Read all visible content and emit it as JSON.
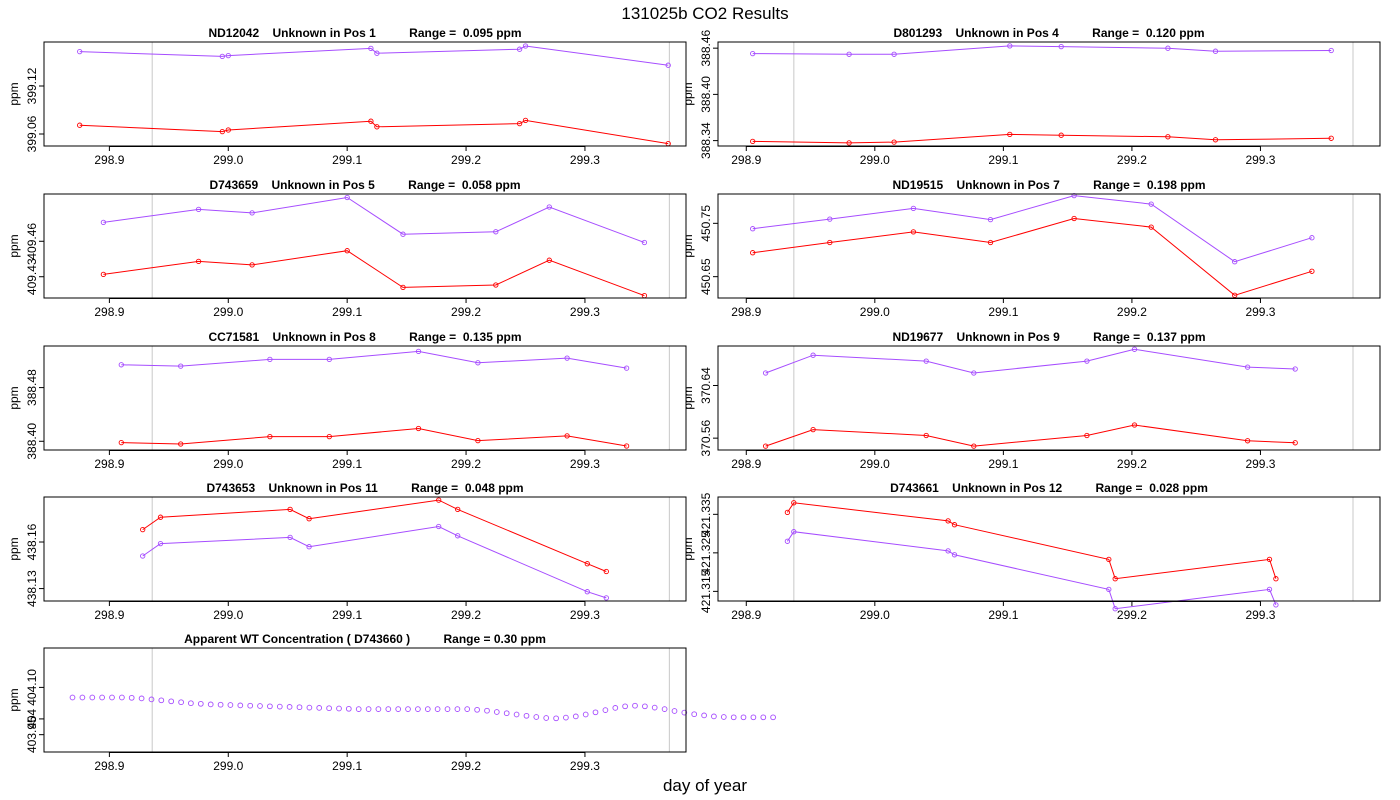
{
  "title": "131025b  CO2 Results",
  "xlabel": "day of year",
  "colors": {
    "upper": "#a64dff",
    "lower": "#ff0000",
    "wt": "#ff0000",
    "vline": "#c8c8c8",
    "axis": "#000000"
  },
  "chart_data": [
    {
      "type": "line",
      "id": "p1",
      "title": "ND12042    Unknown in Pos 1          Range =  0.095 ppm",
      "ylabel": "ppm",
      "xlim": [
        298.845,
        299.385
      ],
      "ylim": [
        399.045,
        399.175
      ],
      "yticks": [
        399.06,
        399.12
      ],
      "ytick_labels": [
        "399.06",
        "399.12"
      ],
      "xticks": [
        298.9,
        299.0,
        299.1,
        299.2,
        299.3
      ],
      "xtick_labels": [
        "298.9",
        "299.0",
        "299.1",
        "299.2",
        "299.3"
      ],
      "vlines": [
        298.936,
        299.371
      ],
      "series": [
        {
          "name": "upper",
          "x": [
            298.875,
            298.995,
            299.0,
            299.12,
            299.125,
            299.245,
            299.25,
            299.37
          ],
          "y": [
            399.163,
            399.157,
            399.158,
            399.167,
            399.161,
            399.166,
            399.17,
            399.146
          ]
        },
        {
          "name": "lower",
          "x": [
            298.875,
            298.995,
            299.0,
            299.12,
            299.125,
            299.245,
            299.25,
            299.37
          ],
          "y": [
            399.071,
            399.063,
            399.065,
            399.076,
            399.069,
            399.073,
            399.077,
            399.048
          ]
        }
      ]
    },
    {
      "type": "line",
      "id": "p2",
      "title": "D801293    Unknown in Pos 4          Range =  0.120 ppm",
      "ylabel": "ppm",
      "xlim": [
        298.878,
        299.393
      ],
      "ylim": [
        388.333,
        388.468
      ],
      "yticks": [
        388.34,
        388.4,
        388.46
      ],
      "ytick_labels": [
        "388.34",
        "388.40",
        "388.46"
      ],
      "xticks": [
        298.9,
        299.0,
        299.1,
        299.2,
        299.3
      ],
      "xtick_labels": [
        "298.9",
        "299.0",
        "299.1",
        "299.2",
        "299.3"
      ],
      "vlines": [
        298.937,
        299.372
      ],
      "series": [
        {
          "name": "upper",
          "x": [
            298.905,
            298.98,
            299.015,
            299.105,
            299.145,
            299.228,
            299.265,
            299.355
          ],
          "y": [
            388.453,
            388.452,
            388.452,
            388.463,
            388.462,
            388.46,
            388.456,
            388.457
          ]
        },
        {
          "name": "lower",
          "x": [
            298.905,
            298.98,
            299.015,
            299.105,
            299.145,
            299.228,
            299.265,
            299.355
          ],
          "y": [
            388.339,
            388.337,
            388.338,
            388.348,
            388.347,
            388.345,
            388.341,
            388.343
          ]
        }
      ]
    },
    {
      "type": "line",
      "id": "p3",
      "title": "D743659    Unknown in Pos 5          Range =  0.058 ppm",
      "ylabel": "ppm",
      "xlim": [
        298.845,
        299.385
      ],
      "ylim": [
        409.412,
        409.5
      ],
      "yticks": [
        409.43,
        409.46
      ],
      "ytick_labels": [
        "409.43",
        "409.46"
      ],
      "xticks": [
        298.9,
        299.0,
        299.1,
        299.2,
        299.3
      ],
      "xtick_labels": [
        "298.9",
        "299.0",
        "299.1",
        "299.2",
        "299.3"
      ],
      "vlines": [
        298.936,
        299.371
      ],
      "series": [
        {
          "name": "upper",
          "x": [
            298.895,
            298.975,
            299.02,
            299.1,
            299.147,
            299.225,
            299.27,
            299.35
          ],
          "y": [
            409.476,
            409.487,
            409.484,
            409.497,
            409.466,
            409.468,
            409.489,
            409.459
          ]
        },
        {
          "name": "lower",
          "x": [
            298.895,
            298.975,
            299.02,
            299.1,
            299.147,
            299.225,
            299.27,
            299.35
          ],
          "y": [
            409.432,
            409.443,
            409.44,
            409.452,
            409.421,
            409.423,
            409.444,
            409.414
          ]
        }
      ]
    },
    {
      "type": "line",
      "id": "p4",
      "title": "ND19515    Unknown in Pos 7          Range =  0.198 ppm",
      "ylabel": "ppm",
      "xlim": [
        298.878,
        299.393
      ],
      "ylim": [
        450.61,
        450.805
      ],
      "yticks": [
        450.65,
        450.75
      ],
      "ytick_labels": [
        "450.65",
        "450.75"
      ],
      "xticks": [
        298.9,
        299.0,
        299.1,
        299.2,
        299.3
      ],
      "xtick_labels": [
        "298.9",
        "299.0",
        "299.1",
        "299.2",
        "299.3"
      ],
      "vlines": [
        298.937,
        299.372
      ],
      "series": [
        {
          "name": "upper",
          "x": [
            298.905,
            298.965,
            299.03,
            299.09,
            299.155,
            299.215,
            299.28,
            299.34
          ],
          "y": [
            450.74,
            450.758,
            450.778,
            450.757,
            450.802,
            450.786,
            450.678,
            450.723
          ]
        },
        {
          "name": "lower",
          "x": [
            298.905,
            298.965,
            299.03,
            299.09,
            299.155,
            299.215,
            299.28,
            299.34
          ],
          "y": [
            450.695,
            450.714,
            450.734,
            450.714,
            450.759,
            450.743,
            450.615,
            450.66
          ]
        }
      ]
    },
    {
      "type": "line",
      "id": "p5",
      "title": "CC71581    Unknown in Pos 8          Range =  0.135 ppm",
      "ylabel": "ppm",
      "xlim": [
        298.845,
        299.385
      ],
      "ylim": [
        388.387,
        388.542
      ],
      "yticks": [
        388.4,
        388.48
      ],
      "ytick_labels": [
        "388.40",
        "388.48"
      ],
      "xticks": [
        298.9,
        299.0,
        299.1,
        299.2,
        299.3
      ],
      "xtick_labels": [
        "298.9",
        "299.0",
        "299.1",
        "299.2",
        "299.3"
      ],
      "vlines": [
        298.936,
        299.371
      ],
      "series": [
        {
          "name": "upper",
          "x": [
            298.91,
            298.96,
            299.035,
            299.085,
            299.16,
            299.21,
            299.285,
            299.335
          ],
          "y": [
            388.514,
            388.512,
            388.522,
            388.522,
            388.534,
            388.517,
            388.524,
            388.509
          ]
        },
        {
          "name": "lower",
          "x": [
            298.91,
            298.96,
            299.035,
            299.085,
            299.16,
            299.21,
            299.285,
            299.335
          ],
          "y": [
            388.398,
            388.396,
            388.407,
            388.407,
            388.419,
            388.401,
            388.408,
            388.393
          ]
        }
      ]
    },
    {
      "type": "line",
      "id": "p6",
      "title": "ND19677    Unknown in Pos 9          Range =  0.137 ppm",
      "ylabel": "ppm",
      "xlim": [
        298.878,
        299.393
      ],
      "ylim": [
        370.542,
        370.7
      ],
      "yticks": [
        370.56,
        370.64
      ],
      "ytick_labels": [
        "370.56",
        "370.64"
      ],
      "xticks": [
        298.9,
        299.0,
        299.1,
        299.2,
        299.3
      ],
      "xtick_labels": [
        "298.9",
        "299.0",
        "299.1",
        "299.2",
        "299.3"
      ],
      "vlines": [
        298.937,
        299.372
      ],
      "series": [
        {
          "name": "upper",
          "x": [
            298.915,
            298.952,
            299.04,
            299.077,
            299.165,
            299.202,
            299.29,
            299.327
          ],
          "y": [
            370.659,
            370.686,
            370.677,
            370.659,
            370.677,
            370.695,
            370.668,
            370.665
          ]
        },
        {
          "name": "lower",
          "x": [
            298.915,
            298.952,
            299.04,
            299.077,
            299.165,
            299.202,
            299.29,
            299.327
          ],
          "y": [
            370.548,
            370.573,
            370.564,
            370.548,
            370.564,
            370.58,
            370.556,
            370.553
          ]
        }
      ]
    },
    {
      "type": "line",
      "id": "p7",
      "title": "D743653    Unknown in Pos 11          Range =  0.048 ppm",
      "ylabel": "ppm",
      "xlim": [
        298.845,
        299.385
      ],
      "ylim": [
        438.122,
        438.189
      ],
      "yticks": [
        438.13,
        438.16
      ],
      "ytick_labels": [
        "438.13",
        "438.16"
      ],
      "xticks": [
        298.9,
        299.0,
        299.1,
        299.2,
        299.3
      ],
      "xtick_labels": [
        "298.9",
        "299.0",
        "299.1",
        "299.2",
        "299.3"
      ],
      "vlines": [
        298.936,
        299.371
      ],
      "series": [
        {
          "name": "upper",
          "x": [
            298.928,
            298.943,
            299.052,
            299.068,
            299.177,
            299.193,
            299.302,
            299.318
          ],
          "y": [
            438.151,
            438.159,
            438.163,
            438.157,
            438.17,
            438.164,
            438.128,
            438.124
          ]
        },
        {
          "name": "lower",
          "x": [
            298.928,
            298.943,
            299.052,
            299.068,
            299.177,
            299.193,
            299.302,
            299.318
          ],
          "y": [
            438.168,
            438.176,
            438.181,
            438.175,
            438.187,
            438.181,
            438.146,
            438.141
          ]
        }
      ]
    },
    {
      "type": "line",
      "id": "p8",
      "title": "D743661    Unknown in Pos 12          Range =  0.028 ppm",
      "ylabel": "ppm",
      "xlim": [
        298.878,
        299.393
      ],
      "ylim": [
        421.3125,
        421.3395
      ],
      "yticks": [
        421.315,
        421.325,
        421.335
      ],
      "ytick_labels": [
        "421.315",
        "421.325",
        "421.335"
      ],
      "xticks": [
        298.9,
        299.0,
        299.1,
        299.2,
        299.3
      ],
      "xtick_labels": [
        "298.9",
        "299.0",
        "299.1",
        "299.2",
        "299.3"
      ],
      "vlines": [
        298.937,
        299.372
      ],
      "series": [
        {
          "name": "upper",
          "x": [
            298.932,
            298.937,
            299.057,
            299.062,
            299.182,
            299.187,
            299.307,
            299.312
          ],
          "y": [
            421.328,
            421.3305,
            421.3255,
            421.3245,
            421.3155,
            421.3105,
            421.3155,
            421.3115
          ]
        },
        {
          "name": "lower",
          "x": [
            298.932,
            298.937,
            299.057,
            299.062,
            299.182,
            299.187,
            299.307,
            299.312
          ],
          "y": [
            421.3355,
            421.338,
            421.3333,
            421.3323,
            421.3233,
            421.3183,
            421.3233,
            421.3183
          ]
        }
      ]
    },
    {
      "type": "scatter",
      "id": "p9",
      "title": "Apparent WT Concentration ( D743660 )          Range = 0.30 ppm",
      "ylabel": "ppm",
      "xlim": [
        298.845,
        299.385
      ],
      "ylim": [
        403.895,
        404.225
      ],
      "yticks": [
        403.95,
        404.0,
        404.1
      ],
      "ytick_labels": [
        "403.95",
        "404",
        "404.10"
      ],
      "xticks": [
        298.9,
        299.0,
        299.1,
        299.2,
        299.3
      ],
      "xtick_labels": [
        "298.9",
        "299.0",
        "299.1",
        "299.2",
        "299.3"
      ],
      "vlines": [
        298.936,
        299.371
      ],
      "series": [
        {
          "name": "WT",
          "x_start": 298.869,
          "x_step": 0.0083,
          "y": [
            404.068,
            404.068,
            404.068,
            404.068,
            404.068,
            404.068,
            404.067,
            404.065,
            404.062,
            404.059,
            404.056,
            404.053,
            404.05,
            404.048,
            404.046,
            404.045,
            404.044,
            404.043,
            404.042,
            404.041,
            404.04,
            404.039,
            404.038,
            404.037,
            404.036,
            404.035,
            404.034,
            404.033,
            404.032,
            404.031,
            404.031,
            404.031,
            404.031,
            404.031,
            404.031,
            404.031,
            404.031,
            404.031,
            404.031,
            404.031,
            404.031,
            404.029,
            404.026,
            404.022,
            404.018,
            404.014,
            404.01,
            404.006,
            404.003,
            404.002,
            404.004,
            404.008,
            404.014,
            404.021,
            404.028,
            404.035,
            404.04,
            404.042,
            404.04,
            404.036,
            404.031,
            404.025,
            404.02,
            404.015,
            404.011,
            404.008,
            404.006,
            404.005,
            404.005,
            404.005,
            404.005,
            404.005
          ]
        }
      ]
    }
  ]
}
